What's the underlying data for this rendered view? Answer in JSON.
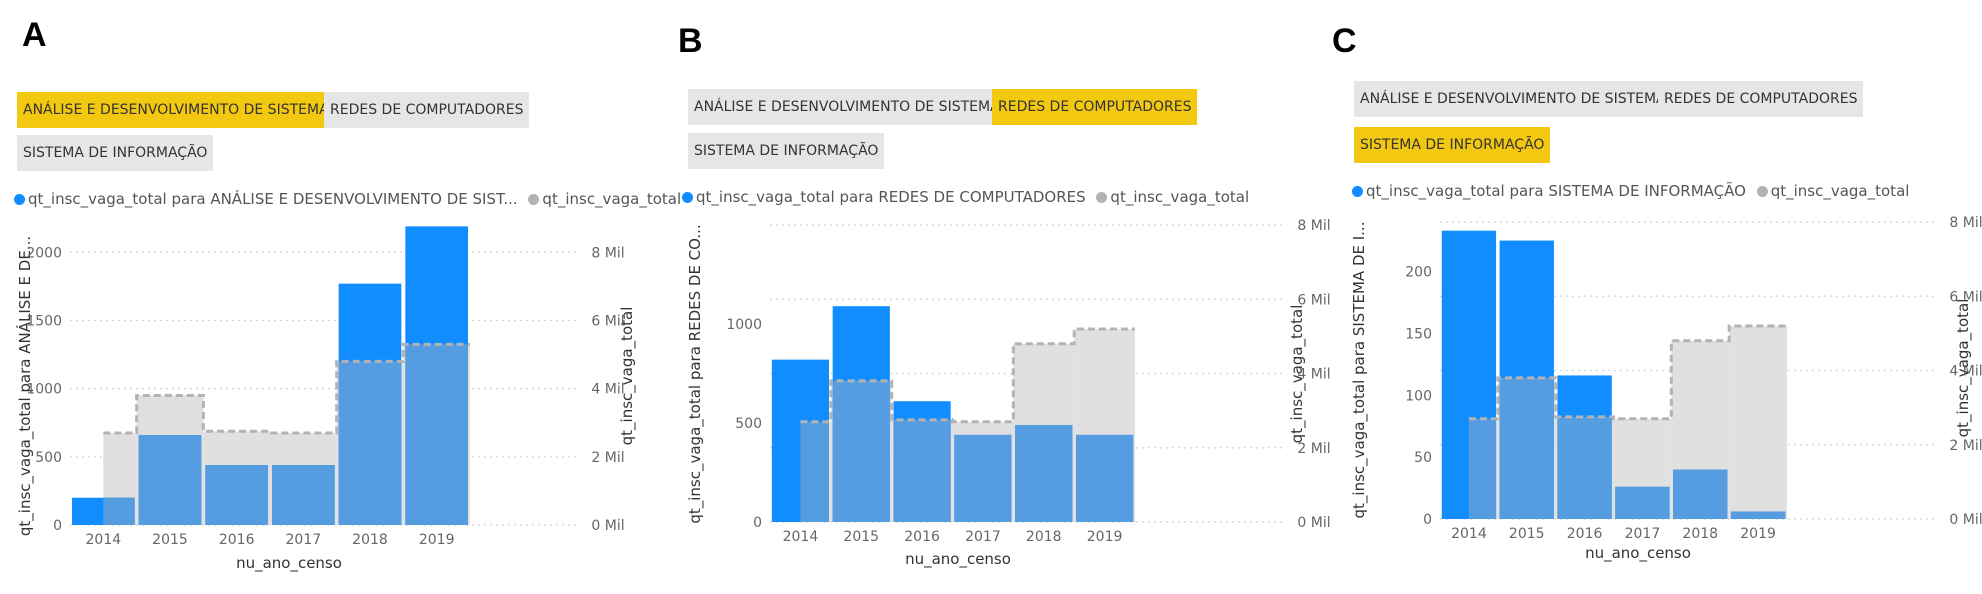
{
  "chart_data": [
    {
      "type": "bar",
      "panel_label": "A",
      "slicer": {
        "options": [
          "ANÁLISE E DESENVOLVIMENTO DE SISTEMAS",
          "REDES DE COMPUTADORES",
          "SISTEMA DE INFORMAÇÃO"
        ],
        "selected": 0
      },
      "legend": {
        "series1": "qt_insc_vaga_total para ANÁLISE E DESENVOLVIMENTO DE SIST...",
        "series2": "qt_insc_vaga_total"
      },
      "categories": [
        "2014",
        "2015",
        "2016",
        "2017",
        "2018",
        "2019"
      ],
      "xlabel": "nu_ano_censo",
      "ylabel_left": "qt_insc_vaga_total para ANÁLISE E DE...",
      "ylabel_right": "qt_insc_vaga_total",
      "left_axis": {
        "min": 0,
        "max": 2200,
        "ticks": [
          0,
          500,
          1000,
          1500,
          2000
        ],
        "tick_labels": [
          "0",
          "500",
          "1000",
          "1500",
          "2000"
        ]
      },
      "right_axis": {
        "min": 0,
        "max": 8800,
        "ticks": [
          0,
          2000,
          4000,
          6000,
          8000
        ],
        "tick_labels": [
          "0 Mil",
          "2 Mil",
          "4 Mil",
          "6 Mil",
          "8 Mil"
        ]
      },
      "series": [
        {
          "name": "qt_insc_vaga_total para ANÁLISE E DESENVOLVIMENTO DE SISTEMAS",
          "axis": "left",
          "values": [
            200,
            660,
            440,
            440,
            1770,
            2190
          ]
        },
        {
          "name": "qt_insc_vaga_total",
          "axis": "right",
          "values": [
            2700,
            3800,
            2750,
            2700,
            4800,
            5300
          ]
        }
      ]
    },
    {
      "type": "bar",
      "panel_label": "B",
      "slicer": {
        "options": [
          "ANÁLISE E DESENVOLVIMENTO DE SISTEMAS",
          "REDES DE COMPUTADORES",
          "SISTEMA DE INFORMAÇÃO"
        ],
        "selected": 1
      },
      "legend": {
        "series1": "qt_insc_vaga_total para REDES DE COMPUTADORES",
        "series2": "qt_insc_vaga_total"
      },
      "categories": [
        "2014",
        "2015",
        "2016",
        "2017",
        "2018",
        "2019"
      ],
      "xlabel": "nu_ano_censo",
      "ylabel_left": "qt_insc_vaga_total para REDES DE CO...",
      "ylabel_right": "qt_insc_vaga_total",
      "left_axis": {
        "min": 0,
        "max": 1500,
        "ticks": [
          0,
          500,
          1000
        ],
        "tick_labels": [
          "0",
          "500",
          "1000"
        ]
      },
      "right_axis": {
        "min": 0,
        "max": 8000,
        "ticks": [
          0,
          2000,
          4000,
          6000,
          8000
        ],
        "tick_labels": [
          "0 Mil",
          "2 Mil",
          "4 Mil",
          "6 Mil",
          "8 Mil"
        ]
      },
      "series": [
        {
          "name": "qt_insc_vaga_total para REDES DE COMPUTADORES",
          "axis": "left",
          "values": [
            820,
            1090,
            610,
            440,
            490,
            440
          ]
        },
        {
          "name": "qt_insc_vaga_total",
          "axis": "right",
          "values": [
            2700,
            3800,
            2750,
            2700,
            4800,
            5200
          ]
        }
      ]
    },
    {
      "type": "bar",
      "panel_label": "C",
      "slicer": {
        "options": [
          "ANÁLISE E DESENVOLVIMENTO DE SISTEMAS",
          "REDES DE COMPUTADORES",
          "SISTEMA DE INFORMAÇÃO"
        ],
        "selected": 2
      },
      "legend": {
        "series1": "qt_insc_vaga_total para SISTEMA DE INFORMAÇÃO",
        "series2": "qt_insc_vaga_total"
      },
      "categories": [
        "2014",
        "2015",
        "2016",
        "2017",
        "2018",
        "2019"
      ],
      "xlabel": "nu_ano_censo",
      "ylabel_left": "qt_insc_vaga_total para SISTEMA DE I...",
      "ylabel_right": "qt_insc_vaga_total",
      "left_axis": {
        "min": 0,
        "max": 240,
        "ticks": [
          0,
          50,
          100,
          150,
          200
        ],
        "tick_labels": [
          "0",
          "50",
          "100",
          "150",
          "200"
        ]
      },
      "right_axis": {
        "min": 0,
        "max": 8000,
        "ticks": [
          0,
          2000,
          4000,
          6000,
          8000
        ],
        "tick_labels": [
          "0 Mil",
          "2 Mil",
          "4 Mil",
          "6 Mil",
          "8 Mil"
        ]
      },
      "series": [
        {
          "name": "qt_insc_vaga_total para SISTEMA DE INFORMAÇÃO",
          "axis": "left",
          "values": [
            233,
            225,
            116,
            26,
            40,
            6
          ]
        },
        {
          "name": "qt_insc_vaga_total",
          "axis": "right",
          "values": [
            2700,
            3800,
            2750,
            2700,
            4800,
            5200
          ]
        }
      ]
    }
  ],
  "colors": {
    "series1": "#118dff",
    "series2": "#e0e0e0",
    "overlap": "#559de0",
    "step_line": "#b3b3b3",
    "selected": "#f2c811",
    "unselected": "#e6e6e6",
    "grid": "#d4d4d4"
  }
}
